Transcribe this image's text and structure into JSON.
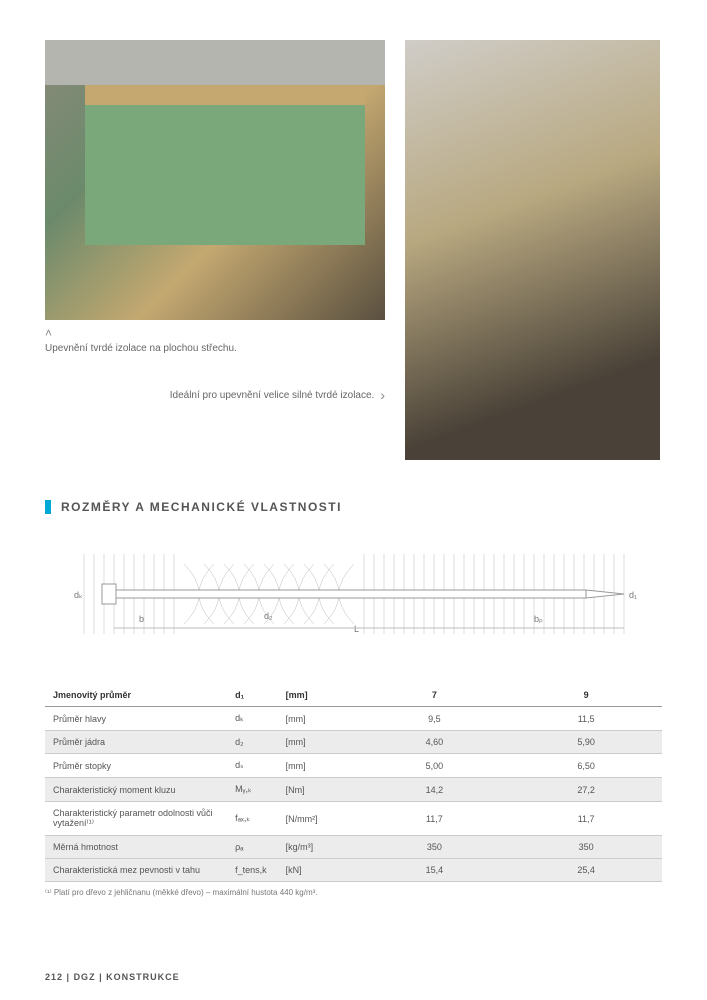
{
  "captions": {
    "left_chevron": "˄",
    "left": "Upevnění tvrdé izolace na plochou střechu.",
    "right": "Ideální pro upevnění velice silné tvrdé izolace.",
    "right_chevron": "›"
  },
  "section": {
    "title": "ROZMĚRY A MECHANICKÉ VLASTNOSTI"
  },
  "diagram": {
    "labels": {
      "dk": "dₖ",
      "d2": "d₂",
      "b": "b",
      "L": "L",
      "bp": "bₚ",
      "d1": "d₁"
    },
    "stroke": "#999",
    "screw_fill": "#fff",
    "screw_stroke": "#bbb"
  },
  "table": {
    "head": {
      "name": "Jmenovitý průměr",
      "sym": "d₁",
      "unit": "[mm]",
      "v1": "7",
      "v2": "9"
    },
    "rows": [
      {
        "name": "Průměr hlavy",
        "sym": "dₖ",
        "unit": "[mm]",
        "v1": "9,5",
        "v2": "11,5",
        "zebra": false
      },
      {
        "name": "Průměr jádra",
        "sym": "d₂",
        "unit": "[mm]",
        "v1": "4,60",
        "v2": "5,90",
        "zebra": true
      },
      {
        "name": "Průměr stopky",
        "sym": "dₛ",
        "unit": "[mm]",
        "v1": "5,00",
        "v2": "6,50",
        "zebra": false
      },
      {
        "name": "Charakteristický moment kluzu",
        "sym": "Mᵧ,ₖ",
        "unit": "[Nm]",
        "v1": "14,2",
        "v2": "27,2",
        "zebra": true
      },
      {
        "name": "Charakteristický parametr odolnosti vůči vytažení⁽¹⁾",
        "sym": "fₐₓ,ₖ",
        "unit": "[N/mm²]",
        "v1": "11,7",
        "v2": "11,7",
        "zebra": false
      },
      {
        "name": "Měrná hmotnost",
        "sym": "ρₐ",
        "unit": "[kg/m³]",
        "v1": "350",
        "v2": "350",
        "zebra": true
      },
      {
        "name": "Charakteristická mez pevnosti v tahu",
        "sym": "f_tens,k",
        "unit": "[kN]",
        "v1": "15,4",
        "v2": "25,4",
        "zebra": true
      }
    ]
  },
  "footnote": "⁽¹⁾ Platí pro dřevo z jehličnanu (měkké dřevo) – maximální hustota 440 kg/m³.",
  "footer": {
    "page": "212",
    "code": "DGZ",
    "category": "KONSTRUKCE"
  }
}
